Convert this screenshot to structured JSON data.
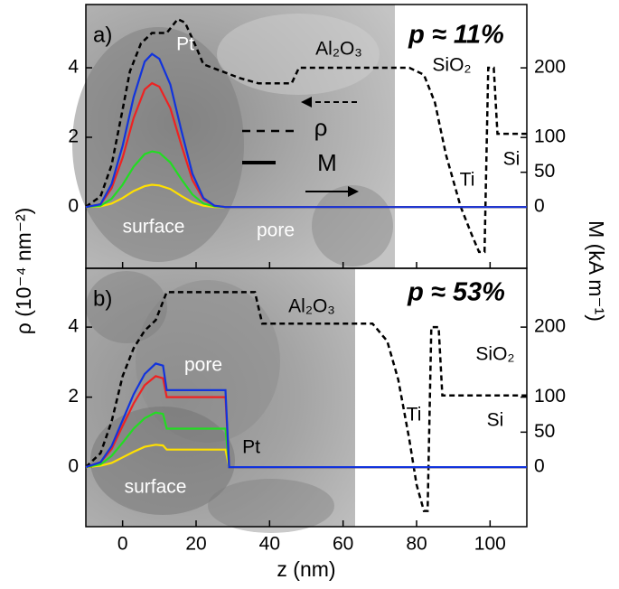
{
  "chart_data": [
    {
      "type": "line",
      "panel_label": "a)",
      "y_label": "ρ (10⁻⁴ nm⁻²)",
      "y2_label": "M (kA m⁻¹)",
      "xlim": [
        -10,
        110
      ],
      "ylim": [
        -1.77,
        5.82
      ],
      "yticks": [
        0,
        2,
        4
      ],
      "y2lim": [
        -88,
        291
      ],
      "y2ticks": [
        0,
        50,
        100,
        200
      ],
      "legend_labels": [
        "ρ",
        "M"
      ],
      "annotations": [
        "p ≈ 11%",
        "Pt",
        "Al₂O₃",
        "SiO₂",
        "Ti",
        "Si",
        "surface",
        "pore"
      ],
      "series": [
        {
          "name": "ρ",
          "color": "#000000",
          "dash": true,
          "x": [
            -10,
            -6,
            -3,
            0,
            2,
            5,
            8,
            12,
            15,
            17,
            20,
            22,
            27,
            32,
            37,
            42,
            46,
            48,
            78,
            82,
            85,
            88,
            92,
            95,
            97,
            98.5,
            99.5,
            101,
            102,
            110
          ],
          "values": [
            0,
            0.3,
            1.2,
            2.8,
            3.9,
            4.7,
            5.0,
            5.0,
            5.4,
            5.3,
            4.6,
            4.1,
            3.9,
            3.7,
            3.55,
            3.55,
            3.55,
            4.0,
            4.0,
            3.8,
            3.0,
            1.5,
            0,
            -0.8,
            -1.3,
            -1.3,
            4.0,
            4.0,
            2.1,
            2.1
          ]
        },
        {
          "color": "#ffe000",
          "axis": "y2",
          "x": [
            -10,
            -6,
            -3,
            0,
            3,
            6,
            8,
            10,
            13,
            16,
            19,
            22,
            25,
            28,
            110
          ],
          "values": [
            0,
            1,
            5,
            13,
            23,
            30,
            32,
            31,
            26,
            16,
            7,
            2,
            0,
            0,
            0
          ]
        },
        {
          "color": "#22dd22",
          "axis": "y2",
          "x": [
            -10,
            -6,
            -3,
            0,
            3,
            6,
            8,
            10,
            13,
            16,
            19,
            22,
            25,
            28,
            110
          ],
          "values": [
            0,
            2,
            12,
            32,
            58,
            76,
            80,
            78,
            64,
            40,
            18,
            5,
            1,
            0,
            0
          ]
        },
        {
          "color": "#ee2222",
          "axis": "y2",
          "x": [
            -10,
            -6,
            -3,
            0,
            3,
            6,
            8,
            10,
            13,
            16,
            19,
            22,
            25,
            28,
            110
          ],
          "values": [
            0,
            4,
            27,
            71,
            128,
            169,
            178,
            173,
            142,
            89,
            39,
            11,
            2,
            0,
            0
          ]
        },
        {
          "color": "#1133dd",
          "axis": "y2",
          "x": [
            -10,
            -6,
            -3,
            0,
            3,
            6,
            8,
            10,
            13,
            16,
            19,
            22,
            25,
            28,
            110
          ],
          "values": [
            0,
            4,
            33,
            88,
            158,
            209,
            220,
            213,
            176,
            110,
            48,
            13,
            2,
            0,
            0
          ]
        }
      ]
    },
    {
      "type": "line",
      "panel_label": "b)",
      "x_label": "z (nm)",
      "xlim": [
        -10,
        110
      ],
      "xticks": [
        0,
        20,
        40,
        60,
        80,
        100
      ],
      "ylim": [
        -1.7,
        5.68
      ],
      "yticks": [
        0,
        2,
        4
      ],
      "y2lim": [
        -85,
        284
      ],
      "y2ticks": [
        0,
        50,
        100,
        200
      ],
      "annotations": [
        "p ≈ 53%",
        "pore",
        "Al₂O₃",
        "SiO₂",
        "Ti",
        "Si",
        "Pt",
        "surface"
      ],
      "series": [
        {
          "name": "ρ",
          "color": "#000000",
          "dash": true,
          "x": [
            -10,
            -6,
            -3,
            0,
            3,
            6,
            9,
            12,
            36,
            38,
            68,
            72,
            75,
            78,
            80,
            82,
            83,
            84,
            86,
            87,
            110
          ],
          "values": [
            0,
            0.4,
            1.3,
            2.6,
            3.4,
            3.9,
            4.2,
            5.0,
            5.0,
            4.1,
            4.1,
            3.6,
            2.5,
            0.8,
            -0.5,
            -1.25,
            -1.25,
            4.0,
            4.0,
            2.05,
            2.05
          ]
        },
        {
          "color": "#ffe000",
          "axis": "y2",
          "x": [
            -10,
            -6,
            -3,
            0,
            3,
            6,
            9,
            11,
            12,
            28,
            29,
            110
          ],
          "values": [
            0,
            2,
            6,
            14,
            22,
            29,
            32,
            31,
            25,
            25,
            0,
            0
          ]
        },
        {
          "color": "#22dd22",
          "axis": "y2",
          "x": [
            -10,
            -6,
            -3,
            0,
            3,
            6,
            9,
            11,
            12,
            28,
            29,
            110
          ],
          "values": [
            0,
            4,
            16,
            35,
            55,
            70,
            78,
            76,
            55,
            55,
            0,
            0
          ]
        },
        {
          "color": "#ee2222",
          "axis": "y2",
          "x": [
            -10,
            -6,
            -3,
            0,
            3,
            6,
            9,
            11,
            12,
            28,
            29,
            110
          ],
          "values": [
            0,
            7,
            26,
            59,
            91,
            117,
            130,
            127,
            100,
            100,
            0,
            0
          ]
        },
        {
          "color": "#1133dd",
          "axis": "y2",
          "x": [
            -10,
            -6,
            -3,
            0,
            3,
            6,
            9,
            11,
            12,
            28,
            29,
            110
          ],
          "values": [
            0,
            7,
            30,
            67,
            104,
            133,
            148,
            145,
            110,
            110,
            0,
            0
          ]
        }
      ]
    }
  ]
}
